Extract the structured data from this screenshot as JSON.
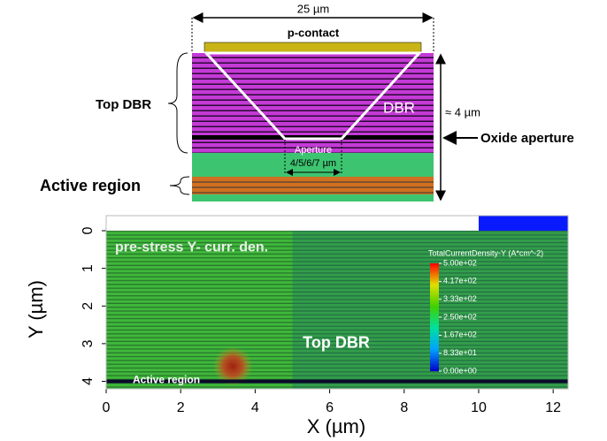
{
  "schematic": {
    "width_label": "25 µm",
    "contact_label": "p-contact",
    "top_dbr_label": "Top DBR",
    "dbr_label": "DBR",
    "height_label": "≈ 4 µm",
    "oxide_label": "Oxide aperture",
    "aperture_label": "Aperture",
    "aperture_sizes": "4/5/6/7 µm",
    "active_label": "Active region"
  },
  "plot": {
    "title": "pre-stress Y- curr. den.",
    "annotation": "Top DBR",
    "active_label": "Active region",
    "xlabel": "X (µm)",
    "ylabel": "Y (µm)",
    "xlim": [
      0,
      12.4
    ],
    "ylim": [
      -0.4,
      4.2
    ],
    "xticks": [
      0,
      2,
      4,
      6,
      8,
      10,
      12
    ],
    "yticks": [
      0,
      1,
      2,
      3,
      4
    ],
    "colorbar": {
      "title": "TotalCurrentDensity-Y (A*cm^-2)",
      "lim": [
        0,
        500
      ],
      "ticks": [
        {
          "value": 500,
          "label": "5.00e+02"
        },
        {
          "value": 416.7,
          "label": "4.17e+02"
        },
        {
          "value": 333.3,
          "label": "3.33e+02"
        },
        {
          "value": 250,
          "label": "2.50e+02"
        },
        {
          "value": 166.7,
          "label": "1.67e+02"
        },
        {
          "value": 83.3,
          "label": "8.33e+01"
        },
        {
          "value": 0,
          "label": "0.00e+00"
        }
      ]
    }
  }
}
